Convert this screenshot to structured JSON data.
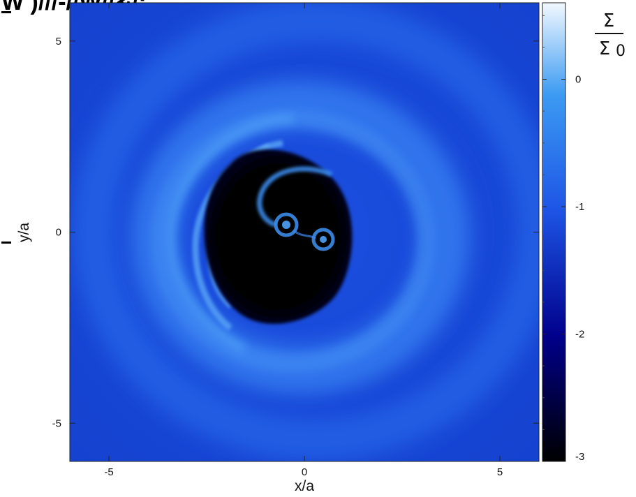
{
  "title_fragment": "W  )///-//W//&/:",
  "chart_data": {
    "type": "heatmap",
    "title": "",
    "xlabel": "x/a",
    "ylabel": "y/a",
    "xlim": [
      -6,
      6
    ],
    "ylim": [
      -6,
      6
    ],
    "x_ticks": [
      -5,
      0,
      5
    ],
    "y_ticks": [
      -5,
      0,
      5
    ],
    "colorbar": {
      "label_numerator": "Σ",
      "label_denominator": "Σ",
      "label_denominator_subscript": "0",
      "scale": "log10",
      "range": [
        -3,
        0.6
      ],
      "ticks": [
        -3,
        -2,
        -1,
        0
      ],
      "colors": [
        "#000000",
        "#00008a",
        "#1e55e6",
        "#3c9bf2",
        "#f2f8ff"
      ]
    },
    "features": {
      "cavity": {
        "center": [
          -0.9,
          -0.6
        ],
        "radius_x": 2.4,
        "radius_y": 2.9,
        "log_sigma": -3
      },
      "stars": [
        {
          "x": -0.45,
          "y": 0.2
        },
        {
          "x": 0.65,
          "y": -0.2
        }
      ],
      "disk_log_sigma": -1.2,
      "ring_log_sigma": -0.9
    }
  }
}
